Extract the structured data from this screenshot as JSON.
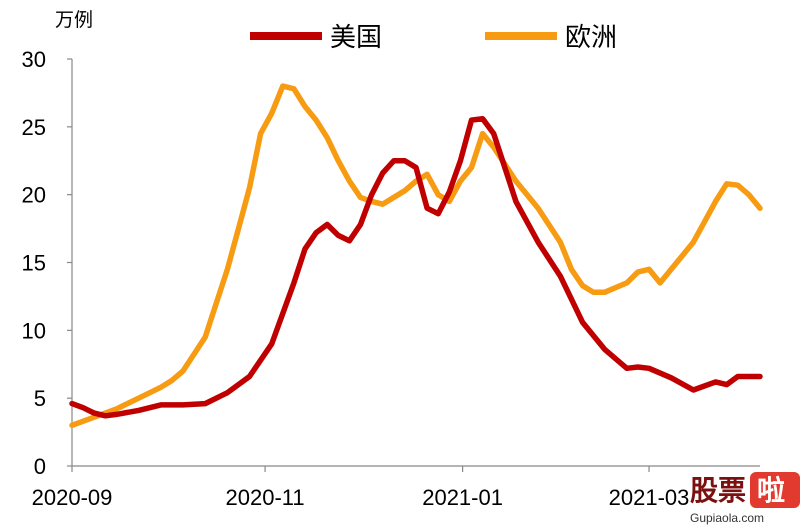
{
  "chart_data": {
    "type": "line",
    "unit_label": "万例",
    "xlabel": "",
    "ylabel": "",
    "ylim": [
      0,
      30
    ],
    "yticks": [
      0,
      5,
      10,
      15,
      20,
      25,
      30
    ],
    "x_tick_labels": [
      "2020-09",
      "2020-11",
      "2021-01",
      "2021-03"
    ],
    "x_tick_weeks": [
      0,
      8.7,
      17.6,
      26.0
    ],
    "x_range_weeks": [
      0,
      31
    ],
    "grid": false,
    "legend_position": "top-center",
    "series": [
      {
        "name": "美国",
        "color": "#C00000",
        "points": [
          [
            0,
            4.6
          ],
          [
            0.5,
            4.3
          ],
          [
            1,
            3.9
          ],
          [
            1.5,
            3.7
          ],
          [
            2,
            3.8
          ],
          [
            3,
            4.1
          ],
          [
            4,
            4.5
          ],
          [
            5,
            4.5
          ],
          [
            6,
            4.6
          ],
          [
            7,
            5.4
          ],
          [
            8,
            6.6
          ],
          [
            9,
            9.0
          ],
          [
            10,
            13.5
          ],
          [
            10.5,
            16.0
          ],
          [
            11,
            17.2
          ],
          [
            11.5,
            17.8
          ],
          [
            12,
            17.0
          ],
          [
            12.5,
            16.6
          ],
          [
            13,
            17.8
          ],
          [
            13.5,
            20.0
          ],
          [
            14,
            21.6
          ],
          [
            14.5,
            22.5
          ],
          [
            15,
            22.5
          ],
          [
            15.5,
            22.0
          ],
          [
            16,
            19.0
          ],
          [
            16.5,
            18.6
          ],
          [
            17,
            20.2
          ],
          [
            17.5,
            22.5
          ],
          [
            18,
            25.5
          ],
          [
            18.5,
            25.6
          ],
          [
            19,
            24.5
          ],
          [
            19.5,
            22.0
          ],
          [
            20,
            19.5
          ],
          [
            21,
            16.5
          ],
          [
            22,
            14.0
          ],
          [
            22.5,
            12.3
          ],
          [
            23,
            10.6
          ],
          [
            24,
            8.6
          ],
          [
            25,
            7.2
          ],
          [
            25.5,
            7.3
          ],
          [
            26,
            7.2
          ],
          [
            27,
            6.5
          ],
          [
            28,
            5.6
          ],
          [
            29,
            6.2
          ],
          [
            29.5,
            6.0
          ],
          [
            30,
            6.6
          ],
          [
            31,
            6.6
          ]
        ]
      },
      {
        "name": "欧洲",
        "color": "#F79B12",
        "points": [
          [
            0,
            3.0
          ],
          [
            1,
            3.6
          ],
          [
            2,
            4.2
          ],
          [
            3,
            5.0
          ],
          [
            4,
            5.8
          ],
          [
            4.5,
            6.3
          ],
          [
            5,
            7.0
          ],
          [
            6,
            9.5
          ],
          [
            7,
            14.5
          ],
          [
            7.5,
            17.5
          ],
          [
            8,
            20.5
          ],
          [
            8.5,
            24.5
          ],
          [
            9,
            26.0
          ],
          [
            9.5,
            28.0
          ],
          [
            10,
            27.8
          ],
          [
            10.5,
            26.5
          ],
          [
            11,
            25.5
          ],
          [
            11.5,
            24.2
          ],
          [
            12,
            22.5
          ],
          [
            12.5,
            21.0
          ],
          [
            13,
            19.8
          ],
          [
            13.5,
            19.5
          ],
          [
            14,
            19.3
          ],
          [
            14.5,
            19.8
          ],
          [
            15,
            20.3
          ],
          [
            15.5,
            21.0
          ],
          [
            16,
            21.5
          ],
          [
            16.5,
            20.0
          ],
          [
            17,
            19.5
          ],
          [
            17.5,
            21.0
          ],
          [
            18,
            22.0
          ],
          [
            18.5,
            24.5
          ],
          [
            19,
            23.5
          ],
          [
            20,
            21.0
          ],
          [
            21,
            19.0
          ],
          [
            22,
            16.5
          ],
          [
            22.5,
            14.5
          ],
          [
            23,
            13.3
          ],
          [
            23.5,
            12.8
          ],
          [
            24,
            12.8
          ],
          [
            25,
            13.5
          ],
          [
            25.5,
            14.3
          ],
          [
            26,
            14.5
          ],
          [
            26.5,
            13.5
          ],
          [
            27,
            14.5
          ],
          [
            27.5,
            15.5
          ],
          [
            28,
            16.5
          ],
          [
            28.5,
            18.0
          ],
          [
            29,
            19.5
          ],
          [
            29.5,
            20.8
          ],
          [
            30,
            20.7
          ],
          [
            30.5,
            20.0
          ],
          [
            31,
            19.0
          ]
        ]
      }
    ]
  },
  "watermark": {
    "text_1": "股票",
    "text_2": "啦",
    "url": "Gupiaola.com"
  }
}
